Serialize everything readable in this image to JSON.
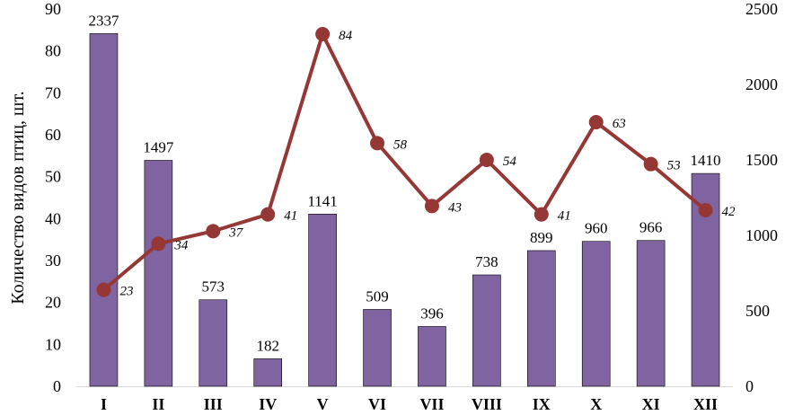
{
  "chart_data": {
    "type": "bar",
    "title": "",
    "categories": [
      "I",
      "II",
      "III",
      "IV",
      "V",
      "VI",
      "VII",
      "VIII",
      "IX",
      "X",
      "XI",
      "XII"
    ],
    "ylabel": "Количество видов птиц, шт.",
    "ylim": [
      0,
      90
    ],
    "yticks": [
      0,
      10,
      20,
      30,
      40,
      50,
      60,
      70,
      80,
      90
    ],
    "y2lim": [
      0,
      2500
    ],
    "y2ticks": [
      0,
      500,
      1000,
      1500,
      2000,
      2500
    ],
    "grid": false,
    "legend": "none",
    "series": [
      {
        "name": "bars",
        "type": "bar",
        "axis": "right",
        "color": "#8064a2",
        "values": [
          2337,
          1497,
          573,
          182,
          1141,
          509,
          396,
          738,
          899,
          960,
          966,
          1410
        ],
        "labels": [
          "2337",
          "1497",
          "573",
          "182",
          "1141",
          "509",
          "396",
          "738",
          "899",
          "960",
          "966",
          "1410"
        ]
      },
      {
        "name": "species",
        "type": "line",
        "axis": "left",
        "color": "#953735",
        "values": [
          23,
          34,
          37,
          41,
          84,
          58,
          43,
          54,
          41,
          63,
          53,
          42
        ],
        "labels": [
          "23",
          "34",
          "37",
          "41",
          "84",
          "58",
          "43",
          "54",
          "41",
          "63",
          "53",
          "42"
        ]
      }
    ]
  }
}
